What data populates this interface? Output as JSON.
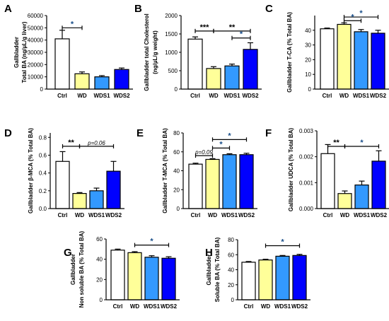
{
  "colors": {
    "Ctrl": "#ffffff",
    "WD": "#ffff99",
    "WDS1": "#3399ff",
    "WDS2": "#0000ff",
    "sig_star": "#1a4f8a"
  },
  "chart_data": [
    {
      "panel": "A",
      "type": "bar",
      "categories": [
        "Ctrl",
        "WD",
        "WDS1",
        "WDS2"
      ],
      "values": [
        41000,
        12500,
        10000,
        16000
      ],
      "errors": [
        7000,
        1500,
        1000,
        1200
      ],
      "ylabel": [
        "Gallbladder",
        "Total BA (ng/µL/g liver)"
      ],
      "ylim": [
        0,
        60000
      ],
      "yticks": [
        0,
        10000,
        20000,
        30000,
        40000,
        50000,
        60000
      ],
      "yticklabels": [
        "0",
        "10000",
        "20000",
        "30000",
        "40000",
        "50000",
        "60000"
      ],
      "sig": [
        {
          "from": 0,
          "to": 1,
          "y": 50000,
          "label": "*"
        }
      ]
    },
    {
      "panel": "B",
      "type": "bar",
      "categories": [
        "Ctrl",
        "WD",
        "WDS1",
        "WDS2"
      ],
      "values": [
        1360,
        560,
        630,
        1080
      ],
      "errors": [
        60,
        50,
        50,
        180
      ],
      "ylabel": [
        "Gallbladder total Cholesterol",
        "(ng/µL/g weight)"
      ],
      "ylim": [
        0,
        2000
      ],
      "yticks": [
        0,
        500,
        1000,
        1500,
        2000
      ],
      "yticklabels": [
        "0",
        "500",
        "1000",
        "1500",
        "2000"
      ],
      "sig": [
        {
          "from": 0,
          "to": 1,
          "y": 1580,
          "label": "***"
        },
        {
          "from": 1,
          "to": 3,
          "y": 1580,
          "label": "**"
        },
        {
          "from": 2,
          "to": 3,
          "y": 1390,
          "label": "*"
        }
      ]
    },
    {
      "panel": "C",
      "type": "bar",
      "categories": [
        "Ctrl",
        "WD",
        "WDS1",
        "WDS2"
      ],
      "values": [
        41,
        44,
        39,
        38
      ],
      "errors": [
        0.5,
        1,
        1.5,
        2
      ],
      "ylabel": [
        "Gallbladder T-CA (% Total BA)"
      ],
      "ylim": [
        0,
        50
      ],
      "yticks": [
        0,
        10,
        20,
        30,
        40
      ],
      "yticklabels": [
        "0",
        "10",
        "20",
        "30",
        "40"
      ],
      "sig": [
        {
          "from": 1,
          "to": 3,
          "y": 49,
          "label": "*"
        },
        {
          "from": 1,
          "to": 2,
          "y": 46.5,
          "label": "*"
        }
      ]
    },
    {
      "panel": "D",
      "type": "bar",
      "categories": [
        "Ctrl",
        "WD",
        "WDS1",
        "WDS2"
      ],
      "values": [
        0.53,
        0.17,
        0.2,
        0.42
      ],
      "errors": [
        0.11,
        0.01,
        0.03,
        0.11
      ],
      "ylabel": [
        "Gallbladder β-MCA (% Total BA)"
      ],
      "ylim": [
        0,
        0.85
      ],
      "yticks": [
        0,
        0.2,
        0.4,
        0.6,
        0.8
      ],
      "yticklabels": [
        "0.0",
        "0.2",
        "0.4",
        "0.6",
        "0.8"
      ],
      "sig": [
        {
          "from": 0,
          "to": 1,
          "y": 0.7,
          "label": "**"
        },
        {
          "from": 1,
          "to": 3,
          "y": 0.7,
          "label": "p=0.06",
          "italic": true
        }
      ]
    },
    {
      "panel": "E",
      "type": "bar",
      "categories": [
        "Ctrl",
        "WD",
        "WDS1",
        "WDS2"
      ],
      "values": [
        47,
        52,
        57,
        57
      ],
      "errors": [
        1,
        0.8,
        1,
        1.5
      ],
      "ylabel": [
        "Gallbladder T-MCA (% Total BA)"
      ],
      "ylim": [
        0,
        80
      ],
      "yticks": [
        0,
        20,
        40,
        60,
        80
      ],
      "yticklabels": [
        "0",
        "20",
        "40",
        "60",
        "80"
      ],
      "sig": [
        {
          "from": 1,
          "to": 3,
          "y": 73,
          "label": "*"
        },
        {
          "from": 1,
          "to": 2,
          "y": 64,
          "label": "*"
        },
        {
          "from": 0,
          "to": 1,
          "y": 56,
          "label": "p=0.09",
          "italic": true
        }
      ]
    },
    {
      "panel": "F",
      "type": "bar",
      "categories": [
        "Ctrl",
        "WD",
        "WDS1",
        "WDS2"
      ],
      "values": [
        0.00212,
        0.00058,
        0.00091,
        0.00183
      ],
      "errors": [
        0.00035,
        0.0001,
        0.00015,
        0.0004
      ],
      "ylabel": [
        "Gallbladder UDCA (% Total BA)"
      ],
      "ylim": [
        0,
        0.003
      ],
      "yticks": [
        0,
        0.001,
        0.002,
        0.003
      ],
      "yticklabels": [
        "0.000",
        "0.001",
        "0.002",
        "0.003"
      ],
      "sig": [
        {
          "from": 0,
          "to": 1,
          "y": 0.0024,
          "label": "**"
        },
        {
          "from": 1,
          "to": 3,
          "y": 0.0024,
          "label": "*"
        }
      ]
    },
    {
      "panel": "G",
      "type": "bar",
      "categories": [
        "Ctrl",
        "WD",
        "WDS1",
        "WDS2"
      ],
      "values": [
        49,
        46.5,
        42,
        41
      ],
      "errors": [
        1,
        1,
        1.5,
        1.5
      ],
      "ylabel": [
        "Gallbladder",
        "Non soluble BA (% Total BA)"
      ],
      "ylim": [
        0,
        60
      ],
      "yticks": [
        0,
        20,
        40,
        60
      ],
      "yticklabels": [
        "0",
        "20",
        "40",
        "60"
      ],
      "sig": [
        {
          "from": 1,
          "to": 3,
          "y": 54,
          "label": "*"
        }
      ]
    },
    {
      "panel": "H",
      "type": "bar",
      "categories": [
        "Ctrl",
        "WD",
        "WDS1",
        "WDS2"
      ],
      "values": [
        50,
        53,
        58,
        59
      ],
      "errors": [
        1,
        1,
        1,
        1.5
      ],
      "ylabel": [
        "Gallbladder",
        "Soluble BA (% Total BA)"
      ],
      "ylim": [
        0,
        80
      ],
      "yticks": [
        0,
        20,
        40,
        60,
        80
      ],
      "yticklabels": [
        "0",
        "20",
        "40",
        "60",
        "80"
      ],
      "sig": [
        {
          "from": 1,
          "to": 3,
          "y": 72,
          "label": "*"
        }
      ]
    }
  ],
  "tick_names": [
    "Ctrl",
    "WD",
    "WDS1",
    "WDS2"
  ]
}
